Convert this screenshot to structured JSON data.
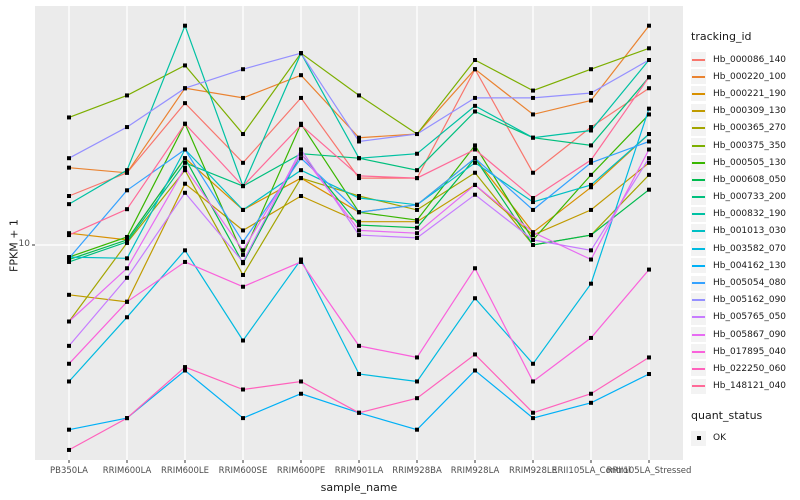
{
  "figure": {
    "background": "#FFFFFF",
    "panel_background": "#EBEBEB",
    "grid_color": "#FFFFFF",
    "point_color": "#000000",
    "tick_color": "#333333",
    "tick_label_color": "#4D4D4D"
  },
  "axes": {
    "x_title": "sample_name",
    "y_title": "FPKM + 1",
    "y_tick_labels": [
      "10"
    ],
    "y_tick_values": [
      10
    ]
  },
  "legend": {
    "tracking_title": "tracking_id",
    "quant_title": "quant_status",
    "quant_items": [
      {
        "label": "OK",
        "marker": "black-square"
      }
    ]
  },
  "chart_data": {
    "type": "line",
    "title": "",
    "xlabel": "sample_name",
    "ylabel": "FPKM + 1",
    "yscale": "log10",
    "ylim": [
      1.33,
      95
    ],
    "y_major_gridlines": [
      10
    ],
    "grid": "major",
    "legend_position": "right",
    "marker": "black-square",
    "quant_status": "OK",
    "categories": [
      "PB350LA",
      "RRIM600LA",
      "RRIM600LE",
      "RRIM600SE",
      "RRIM600PE",
      "RRIM901LA",
      "RRIM928BA",
      "RRIM928LA",
      "RRIM928LE",
      "RRII105LA_Control",
      "RRII105LA_Stressed"
    ],
    "series": [
      {
        "name": "Hb_000086_140",
        "color": "#F8766D",
        "values": [
          16,
          20,
          39,
          22,
          41,
          19,
          19,
          54,
          20,
          31,
          45
        ]
      },
      {
        "name": "Hb_000220_100",
        "color": "#EA8331",
        "values": [
          21,
          20,
          45,
          41,
          51,
          28,
          29,
          54,
          35,
          40,
          82
        ]
      },
      {
        "name": "Hb_000221_190",
        "color": "#D89000",
        "values": [
          11.2,
          10.5,
          23,
          14,
          19,
          13.7,
          14.7,
          23,
          11.3,
          17.4,
          29
        ]
      },
      {
        "name": "Hb_000309_130",
        "color": "#C09B00",
        "values": [
          6.2,
          5.8,
          18,
          11.5,
          16,
          12.5,
          12.5,
          17.8,
          11,
          14,
          22
        ]
      },
      {
        "name": "Hb_000365_270",
        "color": "#A3A500",
        "values": [
          4.8,
          10.2,
          20.5,
          7.5,
          19,
          16,
          14,
          20,
          10,
          11,
          19.6
        ]
      },
      {
        "name": "Hb_000375_350",
        "color": "#7CAE00",
        "values": [
          34,
          42,
          56,
          29,
          63,
          42,
          29,
          59,
          44,
          54,
          66
        ]
      },
      {
        "name": "Hb_000505_130",
        "color": "#39B600",
        "values": [
          8.9,
          10.8,
          32,
          9.1,
          32,
          13.7,
          12.7,
          26,
          10.5,
          19.6,
          35
        ]
      },
      {
        "name": "Hb_000608_050",
        "color": "#00BB4E",
        "values": [
          8.7,
          10.5,
          23,
          8.4,
          24,
          12.1,
          11.8,
          23,
          10,
          11,
          17
        ]
      },
      {
        "name": "Hb_000733_200",
        "color": "#00BF7D",
        "values": [
          8.5,
          10.3,
          22,
          17.6,
          24,
          23,
          20.5,
          36,
          28,
          26,
          50
        ]
      },
      {
        "name": "Hb_000832_190",
        "color": "#00C1A3",
        "values": [
          14.8,
          20.5,
          82,
          17.6,
          63,
          23,
          24,
          38,
          28,
          30,
          59
        ]
      },
      {
        "name": "Hb_001013_030",
        "color": "#00BFC4",
        "values": [
          8.9,
          8.8,
          25,
          14,
          20.5,
          15.7,
          14.7,
          22,
          15.1,
          17.8,
          29
        ]
      },
      {
        "name": "Hb_003582_070",
        "color": "#00BAE0",
        "values": [
          2.7,
          5.0,
          9.5,
          4.0,
          8.7,
          2.9,
          2.7,
          6.0,
          3.2,
          6.9,
          37
        ]
      },
      {
        "name": "Hb_004162_130",
        "color": "#00B0F6",
        "values": [
          1.7,
          1.9,
          3.0,
          1.9,
          2.4,
          2.0,
          1.7,
          3.0,
          1.9,
          2.2,
          2.9
        ]
      },
      {
        "name": "Hb_005054_080",
        "color": "#35A2FF",
        "values": [
          8.8,
          16.9,
          25,
          10.3,
          23,
          13.7,
          14.7,
          23,
          14,
          22,
          27
        ]
      },
      {
        "name": "Hb_005162_090",
        "color": "#9590FF",
        "values": [
          23,
          31,
          45,
          54,
          63,
          27,
          29,
          41,
          41,
          43,
          59
        ]
      },
      {
        "name": "Hb_005765_050",
        "color": "#C77CFF",
        "values": [
          3.8,
          7.3,
          16.5,
          8.5,
          25,
          11,
          10.7,
          16.2,
          10.5,
          9.5,
          23
        ]
      },
      {
        "name": "Hb_005867_090",
        "color": "#E76BF3",
        "values": [
          4.8,
          8.0,
          21,
          9.5,
          24,
          11.5,
          11.2,
          17.8,
          11.3,
          8.7,
          25
        ]
      },
      {
        "name": "Hb_017895_040",
        "color": "#FA62DB",
        "values": [
          3.2,
          5.8,
          8.5,
          6.7,
          8.5,
          3.8,
          3.4,
          8.0,
          2.7,
          4.1,
          7.9
        ]
      },
      {
        "name": "Hb_022250_060",
        "color": "#FF62BC",
        "values": [
          1.4,
          1.9,
          3.1,
          2.5,
          2.7,
          2.0,
          2.3,
          3.5,
          2.0,
          2.4,
          3.4
        ]
      },
      {
        "name": "Hb_148121_040",
        "color": "#FF6A98",
        "values": [
          11,
          14.1,
          32,
          17.6,
          31.6,
          19.4,
          19,
          25,
          15.7,
          22.6,
          50
        ]
      }
    ]
  }
}
